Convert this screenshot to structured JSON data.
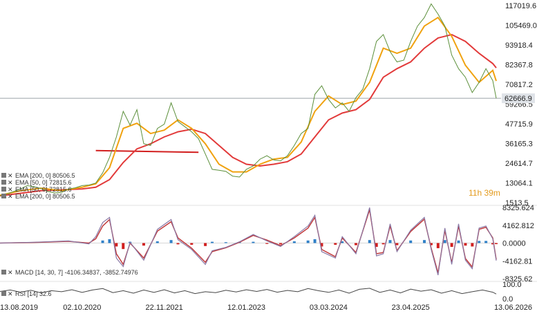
{
  "chart_data": {
    "type": "line",
    "main": {
      "y_ticks": [
        "117019.6",
        "105469.0",
        "93918.4",
        "82367.8",
        "70817.2",
        "59266.5",
        "47715.9",
        "36165.3",
        "24614.7",
        "13064.1",
        "1513.5"
      ],
      "ylim": [
        1513.5,
        117019.6
      ],
      "current_price": "62666.9",
      "countdown": "11h 39m",
      "price_series": {
        "name": "BTC",
        "points": [
          [
            0,
            5500
          ],
          [
            2,
            6500
          ],
          [
            4,
            8000
          ],
          [
            6,
            9500
          ],
          [
            8,
            11500
          ],
          [
            10,
            10800
          ],
          [
            12,
            9800
          ],
          [
            14,
            8000
          ],
          [
            16,
            7200
          ],
          [
            18,
            7500
          ],
          [
            20,
            9500
          ],
          [
            22,
            10200
          ],
          [
            24,
            11500
          ],
          [
            26,
            11800
          ],
          [
            28,
            13000
          ],
          [
            30,
            19000
          ],
          [
            32,
            28000
          ],
          [
            34,
            40000
          ],
          [
            36,
            55000
          ],
          [
            38,
            47000
          ],
          [
            40,
            56000
          ],
          [
            42,
            36000
          ],
          [
            44,
            35000
          ],
          [
            46,
            45000
          ],
          [
            48,
            47500
          ],
          [
            50,
            60000
          ],
          [
            52,
            49000
          ],
          [
            54,
            46000
          ],
          [
            56,
            43000
          ],
          [
            58,
            39000
          ],
          [
            60,
            30000
          ],
          [
            62,
            21000
          ],
          [
            64,
            20500
          ],
          [
            66,
            19800
          ],
          [
            68,
            17000
          ],
          [
            70,
            16500
          ],
          [
            72,
            21000
          ],
          [
            74,
            23000
          ],
          [
            76,
            27000
          ],
          [
            78,
            29000
          ],
          [
            80,
            26500
          ],
          [
            82,
            26000
          ],
          [
            84,
            29000
          ],
          [
            86,
            35000
          ],
          [
            88,
            42000
          ],
          [
            90,
            45000
          ],
          [
            92,
            65000
          ],
          [
            94,
            70000
          ],
          [
            96,
            62000
          ],
          [
            98,
            57000
          ],
          [
            100,
            60000
          ],
          [
            102,
            55000
          ],
          [
            104,
            63000
          ],
          [
            106,
            68000
          ],
          [
            108,
            80000
          ],
          [
            110,
            96000
          ],
          [
            112,
            100000
          ],
          [
            114,
            90000
          ],
          [
            116,
            84000
          ],
          [
            118,
            85000
          ],
          [
            120,
            96000
          ],
          [
            122,
            105000
          ],
          [
            124,
            110000
          ],
          [
            126,
            118000
          ],
          [
            128,
            112000
          ],
          [
            130,
            105000
          ],
          [
            132,
            88000
          ],
          [
            134,
            80000
          ],
          [
            136,
            75000
          ],
          [
            138,
            66000
          ],
          [
            140,
            72000
          ],
          [
            142,
            80000
          ],
          [
            144,
            73000
          ],
          [
            145,
            62666.9
          ]
        ]
      },
      "ema50": {
        "name": "EMA [50, 0]",
        "value": "72815.6",
        "color": "#f0a20f",
        "points": [
          [
            0,
            5800
          ],
          [
            6,
            8500
          ],
          [
            12,
            10000
          ],
          [
            18,
            8500
          ],
          [
            24,
            10500
          ],
          [
            28,
            12500
          ],
          [
            32,
            22000
          ],
          [
            36,
            45000
          ],
          [
            40,
            48000
          ],
          [
            44,
            42000
          ],
          [
            48,
            44000
          ],
          [
            52,
            50000
          ],
          [
            56,
            45000
          ],
          [
            60,
            36000
          ],
          [
            64,
            24000
          ],
          [
            68,
            19500
          ],
          [
            72,
            19500
          ],
          [
            76,
            24000
          ],
          [
            80,
            27000
          ],
          [
            84,
            28000
          ],
          [
            88,
            37000
          ],
          [
            92,
            55000
          ],
          [
            96,
            64000
          ],
          [
            100,
            59000
          ],
          [
            104,
            61000
          ],
          [
            108,
            72000
          ],
          [
            112,
            92000
          ],
          [
            116,
            89000
          ],
          [
            120,
            92000
          ],
          [
            124,
            105000
          ],
          [
            128,
            110000
          ],
          [
            132,
            99000
          ],
          [
            136,
            82000
          ],
          [
            140,
            72000
          ],
          [
            144,
            79000
          ],
          [
            145,
            72815.6
          ]
        ]
      },
      "ema200": {
        "name": "EMA [200, 0]",
        "value": "80506.5",
        "color": "#e23a3a",
        "points": [
          [
            0,
            5500
          ],
          [
            6,
            7000
          ],
          [
            12,
            8500
          ],
          [
            18,
            9000
          ],
          [
            24,
            9500
          ],
          [
            28,
            10500
          ],
          [
            32,
            15000
          ],
          [
            36,
            25000
          ],
          [
            40,
            33000
          ],
          [
            44,
            36000
          ],
          [
            48,
            40000
          ],
          [
            52,
            43000
          ],
          [
            56,
            44500
          ],
          [
            60,
            42000
          ],
          [
            64,
            35000
          ],
          [
            68,
            28000
          ],
          [
            72,
            24000
          ],
          [
            76,
            23000
          ],
          [
            80,
            24000
          ],
          [
            84,
            25500
          ],
          [
            88,
            30000
          ],
          [
            92,
            40000
          ],
          [
            96,
            50000
          ],
          [
            100,
            54000
          ],
          [
            104,
            56000
          ],
          [
            108,
            62000
          ],
          [
            112,
            75000
          ],
          [
            116,
            80000
          ],
          [
            120,
            84000
          ],
          [
            124,
            92000
          ],
          [
            128,
            98000
          ],
          [
            132,
            100000
          ],
          [
            136,
            96000
          ],
          [
            140,
            89000
          ],
          [
            144,
            83000
          ],
          [
            145,
            80506.5
          ]
        ]
      },
      "support_line": {
        "from": [
          28,
          32000
        ],
        "to": [
          58,
          31000
        ],
        "color": "#d21f1f"
      },
      "legend": [
        "EMA [200, 0] 80506.5",
        "EMA [50, 0] 72815.6",
        "EMA [50, 0] 72815.6",
        "EMA [200, 0] 80506.5"
      ]
    },
    "macd": {
      "label": "MACD [14, 30, 7] -4106.34837, -3852.74976",
      "y_ticks": [
        "8325.624",
        "4162.812",
        "0.0000",
        "-4162.81",
        "-8325.62"
      ],
      "ylim": [
        -8325.62,
        8325.624
      ],
      "macd_line": [
        [
          0,
          0
        ],
        [
          10,
          200
        ],
        [
          20,
          500
        ],
        [
          26,
          -200
        ],
        [
          28,
          1500
        ],
        [
          30,
          4800
        ],
        [
          32,
          6000
        ],
        [
          34,
          -3500
        ],
        [
          36,
          -5500
        ],
        [
          38,
          200
        ],
        [
          42,
          -4000
        ],
        [
          46,
          3200
        ],
        [
          50,
          5500
        ],
        [
          52,
          800
        ],
        [
          56,
          -1500
        ],
        [
          60,
          -5000
        ],
        [
          62,
          -1800
        ],
        [
          66,
          -1000
        ],
        [
          70,
          300
        ],
        [
          74,
          2000
        ],
        [
          78,
          500
        ],
        [
          82,
          -800
        ],
        [
          86,
          1500
        ],
        [
          90,
          4000
        ],
        [
          92,
          6500
        ],
        [
          94,
          -2000
        ],
        [
          98,
          -3500
        ],
        [
          100,
          1500
        ],
        [
          104,
          -2500
        ],
        [
          108,
          8300
        ],
        [
          110,
          -3000
        ],
        [
          112,
          -2500
        ],
        [
          114,
          4500
        ],
        [
          116,
          -2000
        ],
        [
          120,
          3000
        ],
        [
          124,
          6000
        ],
        [
          126,
          -1500
        ],
        [
          128,
          -7500
        ],
        [
          130,
          3500
        ],
        [
          132,
          -5000
        ],
        [
          134,
          4500
        ],
        [
          136,
          -4000
        ],
        [
          138,
          -6000
        ],
        [
          140,
          3500
        ],
        [
          142,
          4000
        ],
        [
          144,
          1000
        ],
        [
          145,
          -4106.35
        ]
      ],
      "signal_line": [
        [
          0,
          0
        ],
        [
          10,
          150
        ],
        [
          20,
          400
        ],
        [
          26,
          0
        ],
        [
          28,
          1000
        ],
        [
          30,
          4000
        ],
        [
          32,
          5500
        ],
        [
          34,
          -2500
        ],
        [
          36,
          -5000
        ],
        [
          38,
          0
        ],
        [
          42,
          -3500
        ],
        [
          46,
          2800
        ],
        [
          50,
          5000
        ],
        [
          52,
          1200
        ],
        [
          56,
          -1200
        ],
        [
          60,
          -4500
        ],
        [
          62,
          -2000
        ],
        [
          66,
          -1100
        ],
        [
          70,
          200
        ],
        [
          74,
          1800
        ],
        [
          78,
          700
        ],
        [
          82,
          -600
        ],
        [
          86,
          1200
        ],
        [
          90,
          3500
        ],
        [
          92,
          6000
        ],
        [
          94,
          -1500
        ],
        [
          98,
          -3200
        ],
        [
          100,
          1200
        ],
        [
          104,
          -2200
        ],
        [
          108,
          7800
        ],
        [
          110,
          -2500
        ],
        [
          112,
          -2200
        ],
        [
          114,
          4000
        ],
        [
          116,
          -1800
        ],
        [
          120,
          2700
        ],
        [
          124,
          5600
        ],
        [
          126,
          -1200
        ],
        [
          128,
          -7000
        ],
        [
          130,
          3000
        ],
        [
          132,
          -4600
        ],
        [
          134,
          4000
        ],
        [
          136,
          -3600
        ],
        [
          138,
          -5600
        ],
        [
          140,
          3200
        ],
        [
          142,
          3700
        ],
        [
          144,
          1200
        ],
        [
          145,
          -3852.75
        ]
      ],
      "histogram": [
        [
          30,
          600
        ],
        [
          32,
          900
        ],
        [
          34,
          -800
        ],
        [
          36,
          -1400
        ],
        [
          38,
          300
        ],
        [
          42,
          -600
        ],
        [
          46,
          400
        ],
        [
          50,
          700
        ],
        [
          52,
          -300
        ],
        [
          56,
          -400
        ],
        [
          60,
          -700
        ],
        [
          62,
          300
        ],
        [
          66,
          200
        ],
        [
          70,
          200
        ],
        [
          74,
          300
        ],
        [
          78,
          -200
        ],
        [
          82,
          -300
        ],
        [
          86,
          400
        ],
        [
          90,
          600
        ],
        [
          92,
          900
        ],
        [
          94,
          -800
        ],
        [
          98,
          -400
        ],
        [
          100,
          400
        ],
        [
          104,
          -500
        ],
        [
          108,
          700
        ],
        [
          110,
          -900
        ],
        [
          112,
          -300
        ],
        [
          114,
          700
        ],
        [
          116,
          -500
        ],
        [
          120,
          600
        ],
        [
          124,
          700
        ],
        [
          126,
          -500
        ],
        [
          128,
          -1200
        ],
        [
          130,
          700
        ],
        [
          132,
          -900
        ],
        [
          134,
          600
        ],
        [
          136,
          -600
        ],
        [
          138,
          -800
        ],
        [
          140,
          500
        ],
        [
          142,
          500
        ],
        [
          144,
          -300
        ],
        [
          145,
          -250
        ]
      ]
    },
    "rsi": {
      "label": "RSI [14] 32.6",
      "y_ticks": [
        "100.0",
        "0.0"
      ],
      "ylim": [
        0,
        100
      ],
      "points": [
        [
          0,
          50
        ],
        [
          3,
          60
        ],
        [
          6,
          45
        ],
        [
          9,
          58
        ],
        [
          12,
          40
        ],
        [
          15,
          55
        ],
        [
          18,
          48
        ],
        [
          21,
          62
        ],
        [
          24,
          44
        ],
        [
          27,
          60
        ],
        [
          30,
          70
        ],
        [
          33,
          42
        ],
        [
          36,
          55
        ],
        [
          39,
          38
        ],
        [
          42,
          60
        ],
        [
          45,
          44
        ],
        [
          48,
          62
        ],
        [
          51,
          40
        ],
        [
          54,
          55
        ],
        [
          57,
          35
        ],
        [
          60,
          48
        ],
        [
          63,
          42
        ],
        [
          66,
          58
        ],
        [
          69,
          46
        ],
        [
          72,
          62
        ],
        [
          75,
          50
        ],
        [
          78,
          64
        ],
        [
          81,
          45
        ],
        [
          84,
          57
        ],
        [
          87,
          48
        ],
        [
          90,
          70
        ],
        [
          93,
          55
        ],
        [
          96,
          44
        ],
        [
          99,
          60
        ],
        [
          102,
          38
        ],
        [
          105,
          65
        ],
        [
          108,
          72
        ],
        [
          111,
          44
        ],
        [
          114,
          60
        ],
        [
          117,
          40
        ],
        [
          120,
          66
        ],
        [
          123,
          52
        ],
        [
          126,
          62
        ],
        [
          129,
          38
        ],
        [
          132,
          55
        ],
        [
          135,
          35
        ],
        [
          138,
          48
        ],
        [
          141,
          60
        ],
        [
          144,
          45
        ],
        [
          145,
          32.6
        ]
      ]
    },
    "x_ticks": [
      "13.08.2019",
      "02.10.2020",
      "22.11.2021",
      "12.01.2023",
      "03.03.2024",
      "23.04.2025",
      "13.06.2026"
    ],
    "x_tick_positions": [
      0,
      24,
      48,
      72,
      96,
      120,
      144
    ]
  }
}
